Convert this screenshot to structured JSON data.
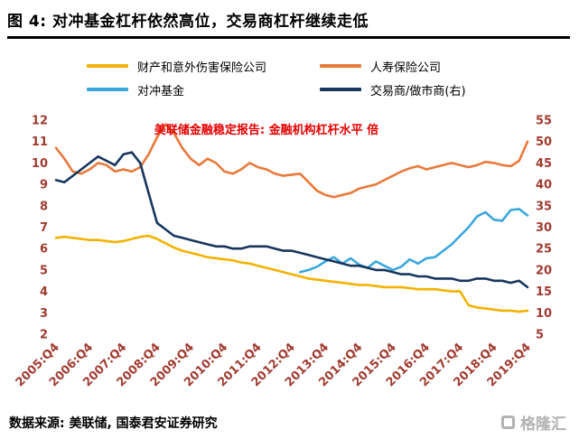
{
  "header": {
    "title": "图 4: 对冲基金杠杆依然高位，交易商杠杆继续走低"
  },
  "footer": {
    "source": "数据来源: 美联储, 国泰君安证券研究",
    "watermark": "格隆汇"
  },
  "colors": {
    "axis_label": "#A03B30",
    "annotation": "#E60000",
    "title_rule": "#000000",
    "watermark": "#B3B3B3"
  },
  "chart_data": {
    "type": "line",
    "annotation": "美联储金融稳定报告: 金融机构杠杆水平 倍",
    "grid": false,
    "legend_position": "top",
    "x": [
      "2005:Q4",
      "2006:Q1",
      "2006:Q2",
      "2006:Q3",
      "2006:Q4",
      "2007:Q1",
      "2007:Q2",
      "2007:Q3",
      "2007:Q4",
      "2008:Q1",
      "2008:Q2",
      "2008:Q3",
      "2008:Q4",
      "2009:Q1",
      "2009:Q2",
      "2009:Q3",
      "2009:Q4",
      "2010:Q1",
      "2010:Q2",
      "2010:Q3",
      "2010:Q4",
      "2011:Q1",
      "2011:Q2",
      "2011:Q3",
      "2011:Q4",
      "2012:Q1",
      "2012:Q2",
      "2012:Q3",
      "2012:Q4",
      "2013:Q1",
      "2013:Q2",
      "2013:Q3",
      "2013:Q4",
      "2014:Q1",
      "2014:Q2",
      "2014:Q3",
      "2014:Q4",
      "2015:Q1",
      "2015:Q2",
      "2015:Q3",
      "2015:Q4",
      "2016:Q1",
      "2016:Q2",
      "2016:Q3",
      "2016:Q4",
      "2017:Q1",
      "2017:Q2",
      "2017:Q3",
      "2017:Q4",
      "2018:Q1",
      "2018:Q2",
      "2018:Q3",
      "2018:Q4",
      "2019:Q1",
      "2019:Q2",
      "2019:Q3",
      "2019:Q4"
    ],
    "x_tick_every": 4,
    "left_axis": {
      "min": 2,
      "max": 12,
      "ticks": [
        2,
        3,
        4,
        5,
        6,
        7,
        8,
        9,
        10,
        11,
        12
      ]
    },
    "right_axis": {
      "min": 5,
      "max": 55,
      "ticks": [
        5,
        10,
        15,
        20,
        25,
        30,
        35,
        40,
        45,
        50,
        55
      ]
    },
    "series": [
      {
        "name": "财产和意外伤害保险公司",
        "axis": "left",
        "color": "#F2B200",
        "values": [
          6.5,
          6.55,
          6.5,
          6.45,
          6.4,
          6.4,
          6.35,
          6.3,
          6.35,
          6.45,
          6.55,
          6.6,
          6.45,
          6.25,
          6.05,
          5.9,
          5.8,
          5.7,
          5.6,
          5.55,
          5.5,
          5.45,
          5.35,
          5.3,
          5.2,
          5.1,
          5.0,
          4.9,
          4.8,
          4.7,
          4.6,
          4.55,
          4.5,
          4.45,
          4.4,
          4.35,
          4.3,
          4.3,
          4.25,
          4.2,
          4.2,
          4.2,
          4.15,
          4.1,
          4.1,
          4.1,
          4.05,
          4.0,
          4.0,
          3.35,
          3.25,
          3.2,
          3.15,
          3.1,
          3.1,
          3.05,
          3.1
        ]
      },
      {
        "name": "人寿保险公司",
        "axis": "left",
        "color": "#E8793A",
        "values": [
          10.7,
          10.2,
          9.6,
          9.5,
          9.7,
          10.0,
          9.9,
          9.6,
          9.7,
          9.6,
          9.8,
          10.4,
          11.2,
          11.8,
          11.4,
          10.7,
          10.2,
          9.9,
          10.2,
          10.0,
          9.6,
          9.5,
          9.7,
          10.0,
          9.8,
          9.7,
          9.5,
          9.4,
          9.45,
          9.5,
          9.1,
          8.7,
          8.5,
          8.4,
          8.5,
          8.6,
          8.8,
          8.9,
          9.0,
          9.2,
          9.4,
          9.6,
          9.75,
          9.85,
          9.7,
          9.8,
          9.9,
          10.0,
          9.9,
          9.8,
          9.9,
          10.05,
          10.0,
          9.9,
          9.85,
          10.1,
          11.0
        ]
      },
      {
        "name": "对冲基金",
        "axis": "left",
        "color": "#3AA7DC",
        "values": [
          null,
          null,
          null,
          null,
          null,
          null,
          null,
          null,
          null,
          null,
          null,
          null,
          null,
          null,
          null,
          null,
          null,
          null,
          null,
          null,
          null,
          null,
          null,
          null,
          null,
          null,
          null,
          null,
          null,
          4.9,
          5.0,
          5.15,
          5.4,
          5.6,
          5.3,
          5.55,
          5.25,
          5.1,
          5.4,
          5.2,
          5.0,
          5.15,
          5.5,
          5.3,
          5.55,
          5.6,
          5.9,
          6.2,
          6.6,
          7.0,
          7.5,
          7.7,
          7.35,
          7.3,
          7.8,
          7.85,
          7.55
        ]
      },
      {
        "name": "交易商/做市商(右)",
        "axis": "right",
        "color": "#17365D",
        "values": [
          41,
          40.5,
          42,
          43.5,
          45,
          46.5,
          45.5,
          44.5,
          47,
          47.5,
          45,
          38,
          31,
          29.5,
          28,
          27.5,
          27,
          26.5,
          26,
          25.5,
          25.5,
          25,
          25,
          25.5,
          25.5,
          25.5,
          25,
          24.5,
          24.5,
          24,
          23.5,
          23,
          22.5,
          22,
          21.5,
          21,
          21,
          20.5,
          20,
          20,
          19.5,
          19,
          19,
          18.5,
          18.5,
          18,
          18,
          18,
          17.5,
          17.5,
          18,
          18,
          17.5,
          17.5,
          17,
          17.5,
          16
        ]
      }
    ]
  }
}
